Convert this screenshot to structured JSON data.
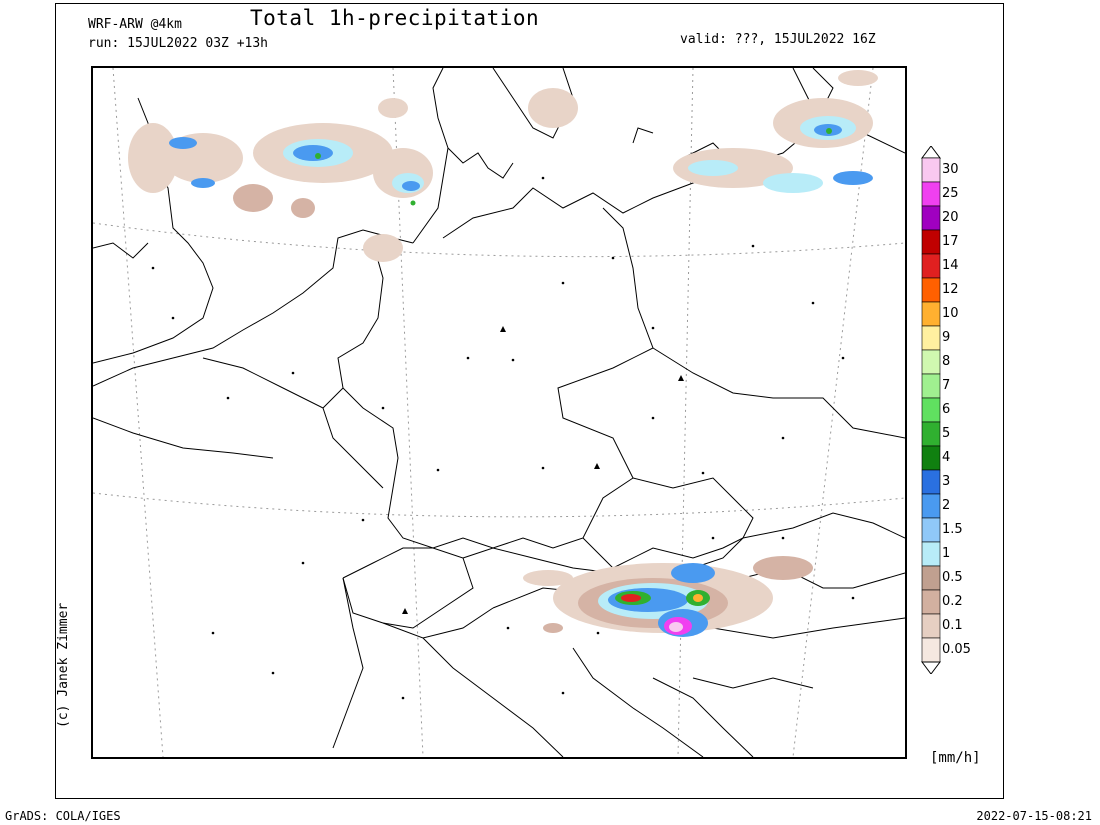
{
  "header": {
    "title": "Total 1h-precipitation",
    "model": "WRF-ARW @4km",
    "run": "run: 15JUL2022 03Z +13h",
    "valid": "valid: ???, 15JUL2022 16Z"
  },
  "credit": "(c) Janek Zimmer",
  "unit": "[mm/h]",
  "footer": {
    "left": "GrADS: COLA/IGES",
    "right": "2022-07-15-08:21"
  },
  "legend": {
    "levels": [
      {
        "label": "30",
        "color": "#f9c8f0"
      },
      {
        "label": "25",
        "color": "#f040f0"
      },
      {
        "label": "20",
        "color": "#a000c0"
      },
      {
        "label": "17",
        "color": "#c00000"
      },
      {
        "label": "14",
        "color": "#e02020"
      },
      {
        "label": "12",
        "color": "#ff6000"
      },
      {
        "label": "10",
        "color": "#ffb030"
      },
      {
        "label": "9",
        "color": "#fff0a0"
      },
      {
        "label": "8",
        "color": "#d0f8b0"
      },
      {
        "label": "7",
        "color": "#a0f090"
      },
      {
        "label": "6",
        "color": "#60e060"
      },
      {
        "label": "5",
        "color": "#30b030"
      },
      {
        "label": "4",
        "color": "#108010"
      },
      {
        "label": "3",
        "color": "#2a70e0"
      },
      {
        "label": "2",
        "color": "#4a9af0"
      },
      {
        "label": "1.5",
        "color": "#90c8f8"
      },
      {
        "label": "1",
        "color": "#b8ecf8"
      },
      {
        "label": "0.5",
        "color": "#c0a090"
      },
      {
        "label": "0.2",
        "color": "#d2b0a0"
      },
      {
        "label": "0.1",
        "color": "#e6cfc2"
      },
      {
        "label": "0.05",
        "color": "#f5e8e0"
      }
    ]
  },
  "colors": {
    "trace": "#e8d4c8",
    "light": "#d5b3a5",
    "mid": "#c59585",
    "blue1": "#b8ecf8",
    "blue2": "#4a9af0",
    "green": "#30b030"
  }
}
